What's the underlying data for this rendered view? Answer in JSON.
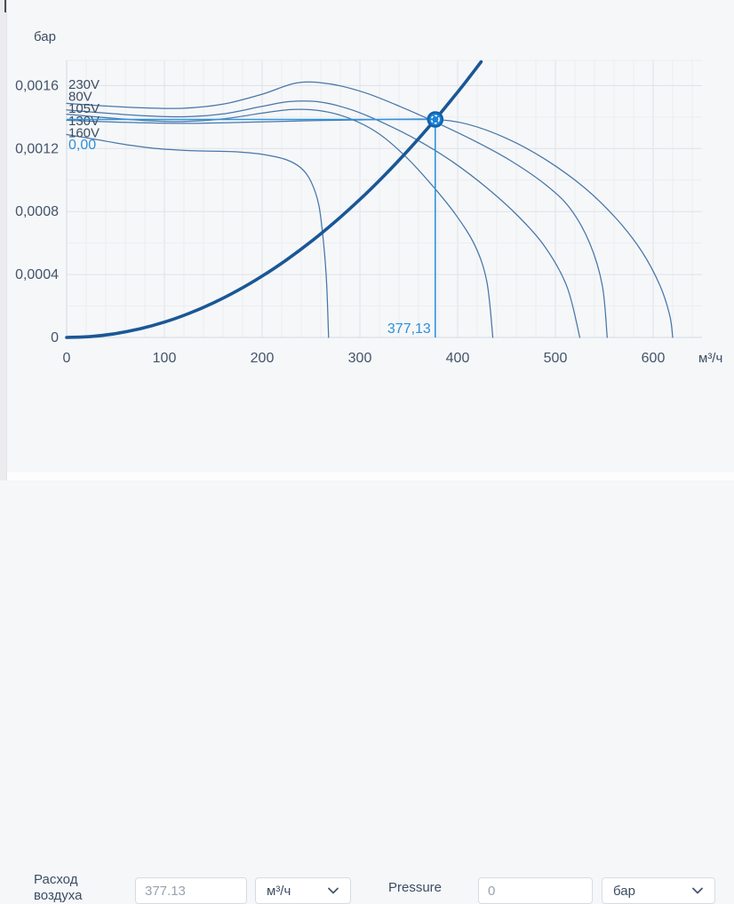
{
  "chart_data": {
    "type": "line",
    "title": "",
    "xlabel": "м³/ч",
    "ylabel": "бар",
    "xlim": [
      0,
      650
    ],
    "ylim": [
      0,
      0.00176
    ],
    "grid": {
      "x_minor_step": 20,
      "y_minor_step": 0.0002,
      "x_major_step": 100,
      "y_major_step": 0.0004
    },
    "x_ticks": [
      {
        "value": 0,
        "label": "0"
      },
      {
        "value": 100,
        "label": "100"
      },
      {
        "value": 200,
        "label": "200"
      },
      {
        "value": 300,
        "label": "300"
      },
      {
        "value": 400,
        "label": "400"
      },
      {
        "value": 500,
        "label": "500"
      },
      {
        "value": 600,
        "label": "600"
      }
    ],
    "y_ticks": [
      {
        "value": 0,
        "label": "0"
      },
      {
        "value": 0.0004,
        "label": "0,0004"
      },
      {
        "value": 0.0008,
        "label": "0,0008"
      },
      {
        "value": 0.0012,
        "label": "0,0012"
      },
      {
        "value": 0.0016,
        "label": "0,0016"
      }
    ],
    "curve_labels": [
      "230V",
      "80V",
      "105V",
      "130V",
      "160V"
    ],
    "series": [
      {
        "name": "230V",
        "role": "fan",
        "points": [
          [
            0,
            0.001487
          ],
          [
            40,
            0.00147
          ],
          [
            80,
            0.001458
          ],
          [
            120,
            0.001456
          ],
          [
            160,
            0.001482
          ],
          [
            200,
            0.001545
          ],
          [
            236,
            0.001618
          ],
          [
            270,
            0.00161
          ],
          [
            305,
            0.001555
          ],
          [
            340,
            0.00147
          ],
          [
            380,
            0.00136
          ],
          [
            420,
            0.00124
          ],
          [
            455,
            0.00112
          ],
          [
            490,
            0.00097
          ],
          [
            515,
            0.00082
          ],
          [
            535,
            0.0006
          ],
          [
            548,
            0.00033
          ],
          [
            553,
            0
          ]
        ]
      },
      {
        "name": "80V",
        "role": "fan",
        "points": [
          [
            0,
            0.001445
          ],
          [
            40,
            0.001425
          ],
          [
            80,
            0.001408
          ],
          [
            120,
            0.001402
          ],
          [
            160,
            0.00142
          ],
          [
            200,
            0.001468
          ],
          [
            228,
            0.001498
          ],
          [
            260,
            0.001495
          ],
          [
            292,
            0.001445
          ],
          [
            325,
            0.00136
          ],
          [
            360,
            0.00125
          ],
          [
            395,
            0.001115
          ],
          [
            430,
            0.00095
          ],
          [
            462,
            0.00077
          ],
          [
            490,
            0.00057
          ],
          [
            512,
            0.00032
          ],
          [
            525,
            0
          ]
        ]
      },
      {
        "name": "105V",
        "role": "fan",
        "points": [
          [
            0,
            0.001418
          ],
          [
            40,
            0.001396
          ],
          [
            80,
            0.001378
          ],
          [
            120,
            0.001372
          ],
          [
            160,
            0.001388
          ],
          [
            200,
            0.001425
          ],
          [
            232,
            0.001448
          ],
          [
            262,
            0.001438
          ],
          [
            290,
            0.00139
          ],
          [
            318,
            0.0013
          ],
          [
            345,
            0.00116
          ],
          [
            372,
            0.00098
          ],
          [
            398,
            0.00078
          ],
          [
            418,
            0.00058
          ],
          [
            430,
            0.00035
          ],
          [
            436,
            0
          ]
        ]
      },
      {
        "name": "130V",
        "role": "fan",
        "points": [
          [
            0,
            0.00138
          ],
          [
            60,
            0.001366
          ],
          [
            120,
            0.00136
          ],
          [
            180,
            0.001366
          ],
          [
            240,
            0.001376
          ],
          [
            300,
            0.001382
          ],
          [
            340,
            0.001386
          ],
          [
            377.13,
            0.001385
          ],
          [
            410,
            0.001355
          ],
          [
            450,
            0.001265
          ],
          [
            490,
            0.00113
          ],
          [
            530,
            0.00095
          ],
          [
            563,
            0.00075
          ],
          [
            588,
            0.00055
          ],
          [
            607,
            0.00033
          ],
          [
            617,
            0.00014
          ],
          [
            620,
            0
          ]
        ]
      },
      {
        "name": "160V",
        "role": "fan",
        "points": [
          [
            0,
            0.001289
          ],
          [
            30,
            0.001258
          ],
          [
            60,
            0.001226
          ],
          [
            90,
            0.001201
          ],
          [
            130,
            0.001186
          ],
          [
            170,
            0.00118
          ],
          [
            200,
            0.001163
          ],
          [
            225,
            0.001128
          ],
          [
            240,
            0.001075
          ],
          [
            250,
            0.00099
          ],
          [
            258,
            0.00084
          ],
          [
            263,
            0.00059
          ],
          [
            266,
            0.00034
          ],
          [
            268,
            0
          ]
        ]
      },
      {
        "name": "system-resistance",
        "role": "system",
        "points": [
          [
            0,
            0
          ],
          [
            25,
            6.1e-06
          ],
          [
            50,
            2.44e-05
          ],
          [
            75,
            5.48e-05
          ],
          [
            100,
            9.74e-05
          ],
          [
            125,
            0.0001522
          ],
          [
            150,
            0.0002192
          ],
          [
            175,
            0.0002983
          ],
          [
            200,
            0.0003896
          ],
          [
            225,
            0.0004931
          ],
          [
            250,
            0.0006088
          ],
          [
            275,
            0.0007366
          ],
          [
            300,
            0.0008766
          ],
          [
            325,
            0.0010288
          ],
          [
            350,
            0.0011932
          ],
          [
            375,
            0.0013697
          ],
          [
            400,
            0.0015584
          ],
          [
            412,
            0.0016533
          ],
          [
            424,
            0.0017511
          ]
        ]
      }
    ],
    "operating_point": {
      "x": 377.13,
      "y": 0.001385,
      "x_label": "377,13",
      "y_label": "0,00"
    },
    "legend_position": "none"
  },
  "form": {
    "flow": {
      "label": "Расход воздуха",
      "value": "377.13",
      "unit": "м³/ч"
    },
    "pressure": {
      "label": "Pressure",
      "value": "0",
      "unit": "бар"
    }
  },
  "colors": {
    "fan_curve": "#33689e",
    "system_curve": "#1a5796",
    "crosshair": "#2f93de",
    "marker_fill": "#1c84d7",
    "marker_ring": "#0f62ad",
    "blue_text": "#2f8fd8",
    "slate_text": "#3c4d62",
    "tick_text": "#44546a",
    "grid_minor": "#ebedf0",
    "grid_major": "#dfe2e7",
    "axis_line": "#d3d8de",
    "background": "#f6f7f9"
  }
}
